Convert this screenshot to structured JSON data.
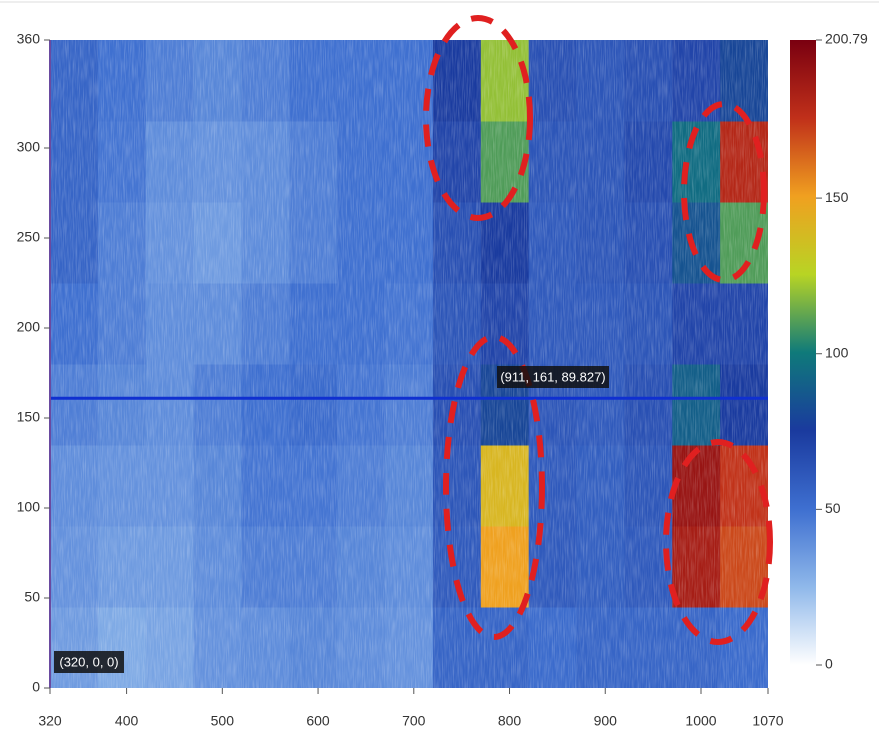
{
  "chart_data": {
    "type": "heatmap",
    "xlim": [
      320,
      1070
    ],
    "xticks": [
      320,
      400,
      500,
      600,
      700,
      800,
      900,
      1000,
      1070
    ],
    "ylim": [
      0,
      360
    ],
    "yticks": [
      0,
      50,
      100,
      150,
      200,
      250,
      300,
      360
    ],
    "z": [
      [
        35,
        30,
        32,
        38,
        40,
        42,
        40,
        38,
        55,
        55,
        52,
        55,
        55,
        55,
        52
      ],
      [
        38,
        35,
        35,
        40,
        45,
        45,
        42,
        40,
        60,
        150,
        60,
        58,
        60,
        185,
        170
      ],
      [
        40,
        38,
        38,
        42,
        48,
        48,
        45,
        42,
        62,
        140,
        60,
        58,
        62,
        190,
        175
      ],
      [
        45,
        42,
        40,
        45,
        50,
        52,
        48,
        45,
        65,
        80,
        62,
        60,
        65,
        90,
        75
      ],
      [
        50,
        45,
        40,
        40,
        45,
        50,
        50,
        48,
        62,
        70,
        60,
        60,
        62,
        70,
        70
      ],
      [
        55,
        45,
        38,
        35,
        40,
        45,
        50,
        50,
        65,
        75,
        60,
        62,
        65,
        85,
        110
      ],
      [
        55,
        48,
        40,
        38,
        40,
        45,
        50,
        50,
        70,
        110,
        62,
        62,
        68,
        95,
        180
      ],
      [
        55,
        50,
        45,
        42,
        45,
        50,
        50,
        50,
        75,
        120,
        65,
        62,
        65,
        70,
        80
      ]
    ],
    "colormap": [
      "#ffffff",
      "#8fb8ea",
      "#3e6fd0",
      "#1a3a9e",
      "#0f7a7a",
      "#b8d424",
      "#f0a020",
      "#c0301a",
      "#7a0010"
    ],
    "clim": [
      0,
      200.79
    ],
    "cticks": [
      0,
      50,
      100,
      150,
      200.79
    ],
    "crosshair_y": 161,
    "crosshair_color": "#1030d0",
    "annotations": [
      "(911, 161, 89.827)",
      "(320, 0, 0)"
    ]
  }
}
